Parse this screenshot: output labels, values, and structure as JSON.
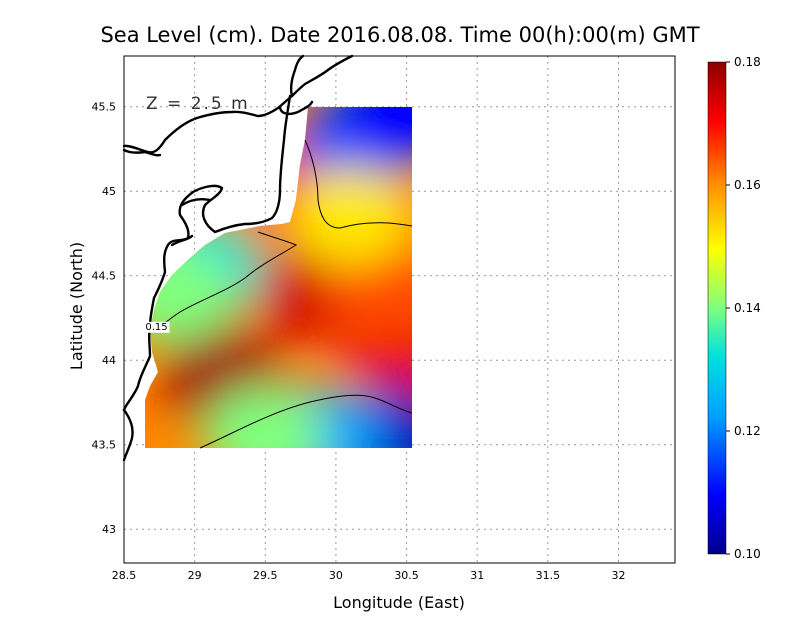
{
  "chart_data": {
    "type": "heatmap",
    "title": "Sea Level (cm). Date 2016.08.08. Time 00(h):00(m) GMT",
    "xlabel": "Longitude (East)",
    "ylabel": "Latitude (North)",
    "depth_note": "Z = 2.5 m",
    "xlim": [
      28.5,
      32.4
    ],
    "ylim": [
      42.8,
      45.8
    ],
    "x_ticks": [
      "28.5",
      "29",
      "29.5",
      "30",
      "30.5",
      "31",
      "31.5",
      "32"
    ],
    "y_ticks": [
      "43",
      "43.5",
      "44",
      "44.5",
      "45",
      "45.5"
    ],
    "grid": true,
    "colorbar": {
      "min": 0.1,
      "max": 0.18,
      "ticks": [
        "0.10",
        "0.12",
        "0.14",
        "0.16",
        "0.18"
      ],
      "colors": [
        "#00008b",
        "#0000ff",
        "#00a0ff",
        "#00e0e0",
        "#7fff7f",
        "#ffff00",
        "#ff9000",
        "#ff0000",
        "#8b0000"
      ]
    },
    "contour_labels": [
      {
        "text": "0.15",
        "lon": 28.73,
        "lat": 44.18
      }
    ],
    "field_extent": {
      "lon": [
        28.65,
        30.55
      ],
      "lat": [
        43.48,
        45.5
      ]
    },
    "field_blobs": [
      {
        "lon": 29.2,
        "lat": 43.9,
        "value": 0.178
      },
      {
        "lon": 29.85,
        "lat": 44.4,
        "value": 0.174
      },
      {
        "lon": 30.45,
        "lat": 44.1,
        "value": 0.172
      },
      {
        "lon": 30.35,
        "lat": 44.4,
        "value": 0.165
      },
      {
        "lon": 29.7,
        "lat": 45.05,
        "value": 0.17
      },
      {
        "lon": 29.05,
        "lat": 44.55,
        "value": 0.13
      },
      {
        "lon": 28.85,
        "lat": 44.4,
        "value": 0.14
      },
      {
        "lon": 30.15,
        "lat": 45.3,
        "value": 0.115
      },
      {
        "lon": 30.45,
        "lat": 45.45,
        "value": 0.11
      },
      {
        "lon": 30.4,
        "lat": 43.55,
        "value": 0.105
      },
      {
        "lon": 29.9,
        "lat": 43.55,
        "value": 0.12
      },
      {
        "lon": 30.1,
        "lat": 44.85,
        "value": 0.152
      },
      {
        "lon": 29.5,
        "lat": 43.55,
        "value": 0.14
      }
    ]
  }
}
